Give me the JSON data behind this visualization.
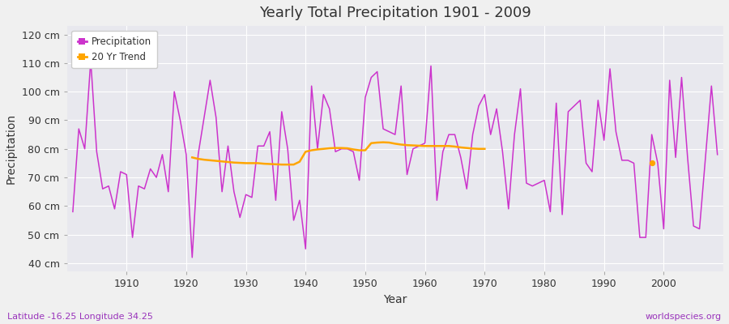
{
  "title": "Yearly Total Precipitation 1901 - 2009",
  "xlabel": "Year",
  "ylabel": "Precipitation",
  "subtitle_left": "Latitude -16.25 Longitude 34.25",
  "subtitle_right": "worldspecies.org",
  "bg_color": "#f0f0f0",
  "plot_bg_color": "#e8e8ee",
  "line_color": "#cc33cc",
  "trend_color": "#ffa500",
  "ylim": [
    37,
    123
  ],
  "yticks": [
    40,
    50,
    60,
    70,
    80,
    90,
    100,
    110,
    120
  ],
  "ytick_labels": [
    "40 cm",
    "50 cm",
    "60 cm",
    "70 cm",
    "80 cm",
    "90 cm",
    "100 cm",
    "110 cm",
    "120 cm"
  ],
  "xticks": [
    1910,
    1920,
    1930,
    1940,
    1950,
    1960,
    1970,
    1980,
    1990,
    2000
  ],
  "xlim": [
    1900,
    2010
  ],
  "years": [
    1901,
    1902,
    1903,
    1904,
    1905,
    1906,
    1907,
    1908,
    1909,
    1910,
    1911,
    1912,
    1913,
    1914,
    1915,
    1916,
    1917,
    1918,
    1919,
    1920,
    1921,
    1922,
    1923,
    1924,
    1925,
    1926,
    1927,
    1928,
    1929,
    1930,
    1931,
    1932,
    1933,
    1934,
    1935,
    1936,
    1937,
    1938,
    1939,
    1940,
    1941,
    1942,
    1943,
    1944,
    1945,
    1946,
    1947,
    1948,
    1949,
    1950,
    1951,
    1952,
    1953,
    1954,
    1955,
    1956,
    1957,
    1958,
    1959,
    1960,
    1961,
    1962,
    1963,
    1964,
    1965,
    1966,
    1967,
    1968,
    1969,
    1970,
    1971,
    1972,
    1973,
    1974,
    1975,
    1976,
    1977,
    1978,
    1979,
    1980,
    1981,
    1982,
    1983,
    1984,
    1985,
    1986,
    1987,
    1988,
    1989,
    1990,
    1991,
    1992,
    1993,
    1994,
    1995,
    1996,
    1997,
    1998,
    1999,
    2000,
    2001,
    2002,
    2003,
    2004,
    2005,
    2006,
    2007,
    2008,
    2009
  ],
  "precip": [
    58,
    87,
    80,
    111,
    79,
    66,
    67,
    59,
    72,
    71,
    49,
    67,
    66,
    73,
    70,
    78,
    65,
    100,
    90,
    78,
    42,
    78,
    91,
    104,
    91,
    65,
    81,
    65,
    56,
    64,
    63,
    81,
    81,
    86,
    62,
    93,
    80,
    55,
    62,
    45,
    102,
    80,
    99,
    94,
    79,
    80,
    80,
    79,
    69,
    98,
    105,
    107,
    87,
    86,
    85,
    102,
    71,
    80,
    81,
    82,
    109,
    62,
    79,
    85,
    85,
    77,
    66,
    85,
    95,
    99,
    85,
    94,
    79,
    59,
    85,
    101,
    68,
    67,
    68,
    69,
    58,
    96,
    57,
    93,
    95,
    97,
    75,
    72,
    97,
    83,
    108,
    86,
    76,
    76,
    75,
    49,
    49,
    85,
    75,
    52,
    104,
    77,
    105,
    77,
    53,
    52,
    77,
    102,
    78
  ],
  "trend_years": [
    1921,
    1922,
    1923,
    1924,
    1925,
    1926,
    1927,
    1928,
    1929,
    1930,
    1931,
    1932,
    1933,
    1934,
    1935,
    1936,
    1937,
    1938,
    1939,
    1940,
    1941,
    1942,
    1943,
    1944,
    1945,
    1946,
    1947,
    1948,
    1949,
    1950,
    1951,
    1952,
    1953,
    1954,
    1955,
    1956,
    1957,
    1958,
    1959,
    1960,
    1961,
    1962,
    1963,
    1964,
    1965,
    1966,
    1967,
    1968,
    1969,
    1970
  ],
  "trend_vals": [
    77.0,
    76.5,
    76.2,
    76.0,
    75.8,
    75.6,
    75.4,
    75.2,
    75.1,
    75.0,
    75.0,
    75.0,
    74.8,
    74.7,
    74.6,
    74.5,
    74.5,
    74.5,
    75.5,
    79.0,
    79.5,
    79.8,
    80.0,
    80.2,
    80.3,
    80.3,
    80.2,
    79.8,
    79.5,
    79.5,
    82.0,
    82.2,
    82.3,
    82.2,
    81.8,
    81.5,
    81.3,
    81.2,
    81.1,
    81.0,
    81.0,
    81.0,
    81.0,
    81.0,
    80.8,
    80.5,
    80.3,
    80.1,
    80.0,
    80.0
  ],
  "trend_dot_year": 1998,
  "trend_dot_val": 75
}
